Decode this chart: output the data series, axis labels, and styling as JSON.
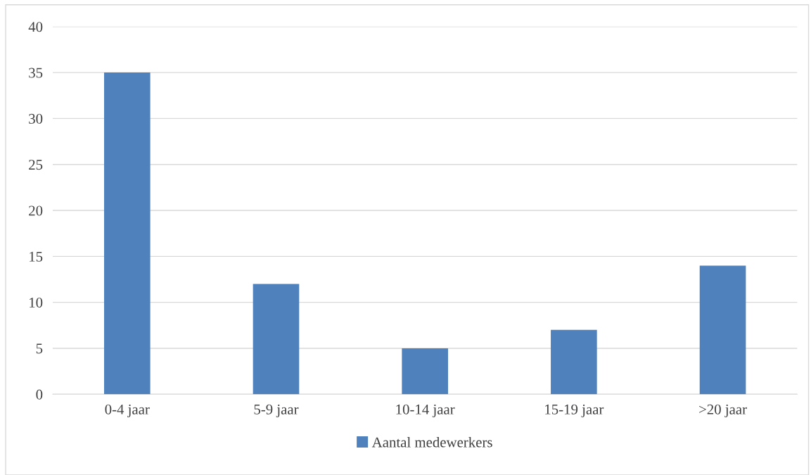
{
  "chart_data": {
    "type": "bar",
    "categories": [
      "0-4 jaar",
      "5-9 jaar",
      "10-14 jaar",
      "15-19 jaar",
      ">20 jaar"
    ],
    "series": [
      {
        "name": "Aantal medewerkers",
        "color": "#4f81bd",
        "values": [
          35,
          12,
          5,
          7,
          14
        ]
      }
    ],
    "ylim": [
      0,
      40
    ],
    "yticks": [
      0,
      5,
      10,
      15,
      20,
      25,
      30,
      35,
      40
    ],
    "grid": "y",
    "legend": "bottom"
  }
}
